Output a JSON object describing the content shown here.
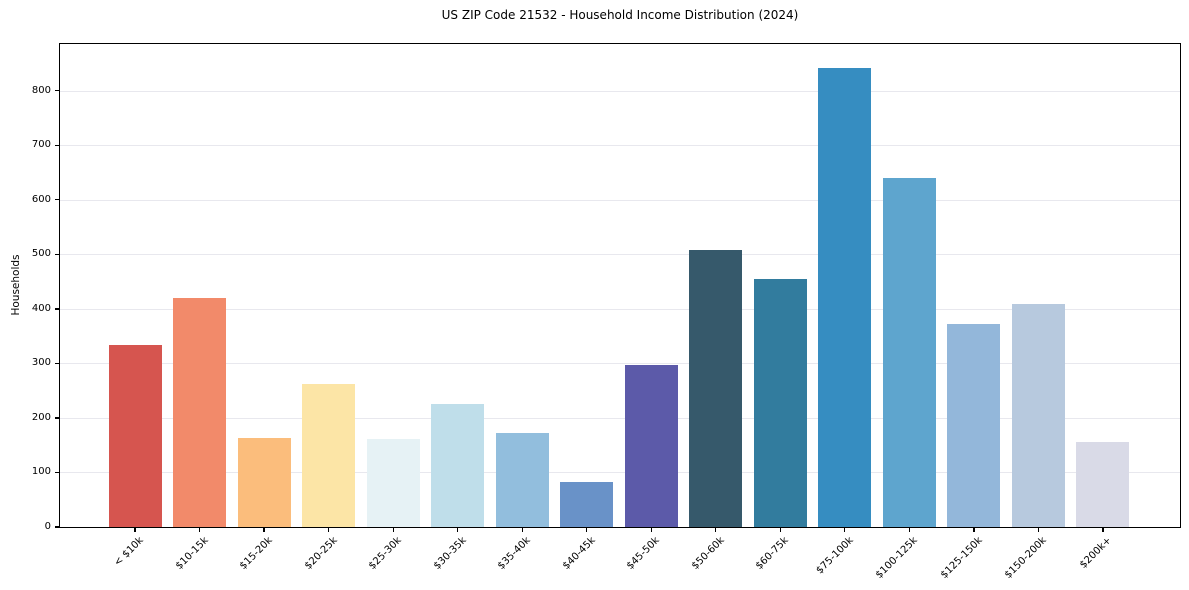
{
  "chart_data": {
    "type": "bar",
    "title": "US ZIP Code 21532 - Household Income Distribution (2024)",
    "xlabel": "",
    "ylabel": "Households",
    "categories": [
      "< $10k",
      "$10-15k",
      "$15-20k",
      "$20-25k",
      "$25-30k",
      "$30-35k",
      "$35-40k",
      "$40-45k",
      "$45-50k",
      "$50-60k",
      "$60-75k",
      "$75-100k",
      "$100-125k",
      "$125-150k",
      "$150-200k",
      "$200k+"
    ],
    "values": [
      334,
      420,
      163,
      262,
      161,
      226,
      173,
      83,
      297,
      508,
      455,
      842,
      640,
      372,
      409,
      156
    ],
    "bar_colors": [
      "#d6554f",
      "#f28a6a",
      "#fbbd7c",
      "#fce5a6",
      "#e6f2f5",
      "#bfdeea",
      "#92bedd",
      "#6992c8",
      "#5c5aa9",
      "#36596b",
      "#327c9e",
      "#368dc1",
      "#5ea5ce",
      "#93b7da",
      "#b7c9de",
      "#d9dae7"
    ],
    "ylim": [
      0,
      886
    ],
    "yticks": [
      0,
      100,
      200,
      300,
      400,
      500,
      600,
      700,
      800
    ],
    "grid": true,
    "legend": "none",
    "gridline_color": "#e8e8ee",
    "axis_color": "#000000",
    "background_color": "#ffffff"
  }
}
